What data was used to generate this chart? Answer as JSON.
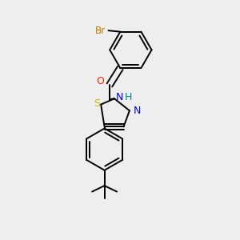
{
  "background_color": "#eeeeee",
  "bond_color": "#000000",
  "bond_width": 1.4,
  "figsize": [
    3.0,
    3.0
  ],
  "dpi": 100,
  "colors": {
    "Br": "#cc7700",
    "O": "#ff2200",
    "N": "#0000ee",
    "H": "#008888",
    "S": "#bbbb00",
    "C": "#000000"
  }
}
